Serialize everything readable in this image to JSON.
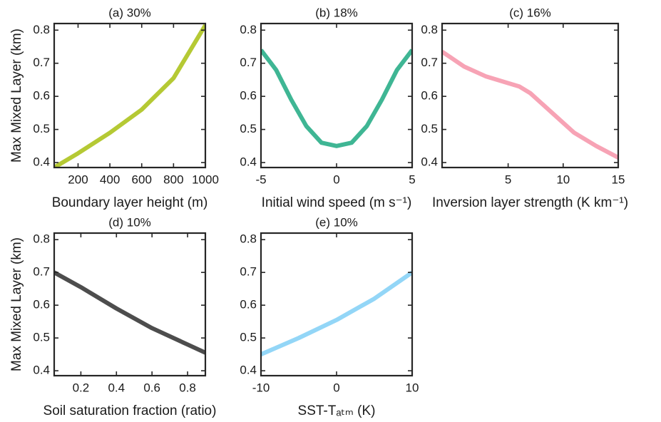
{
  "chart_data": [
    {
      "type": "line",
      "title": "(a) 30%",
      "xlabel": "Boundary layer height (m)",
      "ylabel": "Max Mixed Layer (km)",
      "color": "#b5c934",
      "x": [
        50,
        200,
        400,
        600,
        800,
        1000
      ],
      "values": [
        0.385,
        0.428,
        0.49,
        0.56,
        0.655,
        0.815
      ],
      "xlim": [
        50,
        1000
      ],
      "ylim": [
        0.385,
        0.82
      ],
      "xticks": [
        200,
        400,
        600,
        800,
        1000
      ],
      "yticks": [
        0.4,
        0.5,
        0.6,
        0.7,
        0.8
      ]
    },
    {
      "type": "line",
      "title": "(b) 18%",
      "xlabel": "Initial wind speed (m s⁻¹)",
      "color": "#3fb694",
      "x": [
        -5,
        -4,
        -3,
        -2,
        -1,
        0,
        1,
        2,
        3,
        4,
        5
      ],
      "values": [
        0.74,
        0.68,
        0.59,
        0.51,
        0.46,
        0.45,
        0.46,
        0.51,
        0.59,
        0.68,
        0.74
      ],
      "xlim": [
        -5,
        5
      ],
      "ylim": [
        0.385,
        0.82
      ],
      "xticks": [
        -5,
        0,
        5
      ],
      "yticks": [
        0.4,
        0.5,
        0.6,
        0.7,
        0.8
      ]
    },
    {
      "type": "line",
      "title": "(c) 16%",
      "xlabel": "Inversion layer strength (K km⁻¹)",
      "color": "#f7a3b5",
      "x": [
        -1,
        1,
        3,
        5,
        6,
        7,
        9,
        11,
        13,
        15
      ],
      "values": [
        0.735,
        0.69,
        0.66,
        0.64,
        0.63,
        0.61,
        0.55,
        0.49,
        0.45,
        0.415
      ],
      "xlim": [
        -1,
        15
      ],
      "ylim": [
        0.385,
        0.82
      ],
      "xticks": [
        5,
        10,
        15
      ],
      "yticks": [
        0.4,
        0.5,
        0.6,
        0.7,
        0.8
      ]
    },
    {
      "type": "line",
      "title": "(d) 10%",
      "xlabel": "Soil saturation fraction (ratio)",
      "ylabel": "Max Mixed Layer (km)",
      "color": "#4d4d4d",
      "x": [
        0.05,
        0.2,
        0.4,
        0.6,
        0.8,
        0.9
      ],
      "values": [
        0.7,
        0.655,
        0.59,
        0.53,
        0.48,
        0.455
      ],
      "xlim": [
        0.05,
        0.9
      ],
      "ylim": [
        0.385,
        0.82
      ],
      "xticks": [
        0.2,
        0.4,
        0.6,
        0.8
      ],
      "yticks": [
        0.4,
        0.5,
        0.6,
        0.7,
        0.8
      ]
    },
    {
      "type": "line",
      "title": "(e) 10%",
      "xlabel": "SST-Tₐₜₘ (K)",
      "color": "#93d6f7",
      "x": [
        -10,
        -5,
        0,
        5,
        10
      ],
      "values": [
        0.45,
        0.5,
        0.555,
        0.62,
        0.7
      ],
      "xlim": [
        -10,
        10
      ],
      "ylim": [
        0.385,
        0.82
      ],
      "xticks": [
        -10,
        0,
        10
      ],
      "yticks": [
        0.4,
        0.5,
        0.6,
        0.7,
        0.8
      ]
    }
  ]
}
